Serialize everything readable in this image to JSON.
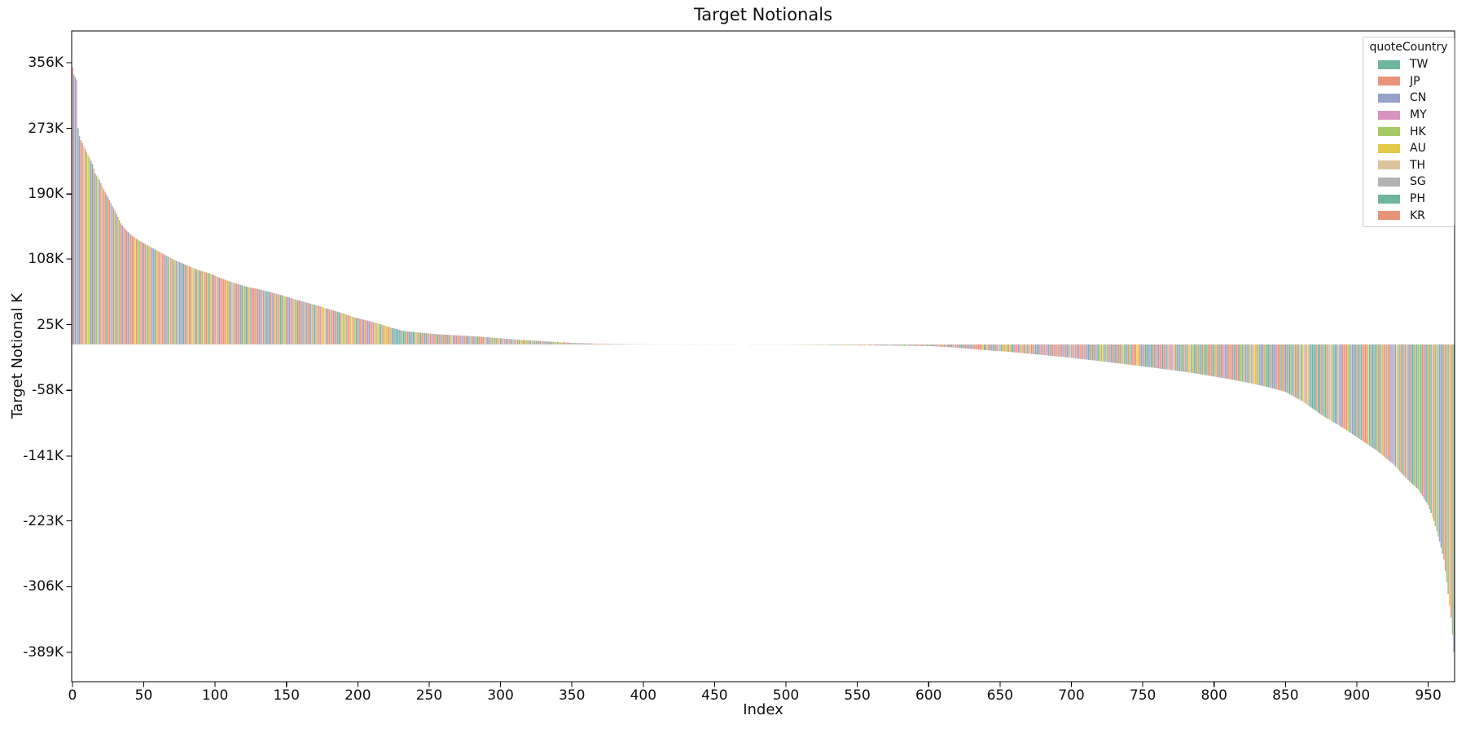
{
  "figure": {
    "background": "#ffffff",
    "axis_color": "#000000",
    "text_color": "#111111"
  },
  "chart_data": {
    "type": "bar",
    "title": "Target Notionals",
    "xlabel": "Index",
    "ylabel": "Target Notional K",
    "legend_title": "quoteCountry",
    "legend_position": "upper right",
    "grid": false,
    "description": "969 bars sorted by value descending from about +350K at index 0 to about -389K at index 968; middle indices (~340-500) are near zero; bar color encodes quoteCountry.",
    "n_bars": 969,
    "xlim": [
      -0.5,
      968.5
    ],
    "ylim_k": [
      -426,
      396
    ],
    "x_ticks": [
      0,
      50,
      100,
      150,
      200,
      250,
      300,
      350,
      400,
      450,
      500,
      550,
      600,
      650,
      700,
      750,
      800,
      850,
      900,
      950
    ],
    "y_ticks": [
      {
        "value": 356,
        "label": "356K"
      },
      {
        "value": 273,
        "label": "273K"
      },
      {
        "value": 190,
        "label": "190K"
      },
      {
        "value": 108,
        "label": "108K"
      },
      {
        "value": 25,
        "label": "25K"
      },
      {
        "value": -58,
        "label": "-58K"
      },
      {
        "value": -141,
        "label": "-141K"
      },
      {
        "value": -223,
        "label": "-223K"
      },
      {
        "value": -306,
        "label": "-306K"
      },
      {
        "value": -389,
        "label": "-389K"
      }
    ],
    "unit": "K",
    "envelope_points_k": [
      [
        0,
        350
      ],
      [
        1,
        341
      ],
      [
        2,
        338
      ],
      [
        3,
        334
      ],
      [
        4,
        273
      ],
      [
        5,
        263
      ],
      [
        6,
        258
      ],
      [
        8,
        251
      ],
      [
        10,
        243
      ],
      [
        12,
        236
      ],
      [
        14,
        228
      ],
      [
        16,
        216
      ],
      [
        19,
        208
      ],
      [
        22,
        196
      ],
      [
        25,
        186
      ],
      [
        28,
        175
      ],
      [
        31,
        165
      ],
      [
        34,
        153
      ],
      [
        38,
        144
      ],
      [
        42,
        137
      ],
      [
        47,
        131
      ],
      [
        52,
        126
      ],
      [
        57,
        121
      ],
      [
        62,
        116
      ],
      [
        70,
        108
      ],
      [
        79,
        101
      ],
      [
        88,
        94
      ],
      [
        96,
        90
      ],
      [
        105,
        83
      ],
      [
        113,
        78
      ],
      [
        122,
        73
      ],
      [
        130,
        70
      ],
      [
        139,
        66
      ],
      [
        147,
        62
      ],
      [
        156,
        57
      ],
      [
        164,
        53
      ],
      [
        172,
        49
      ],
      [
        181,
        44
      ],
      [
        190,
        39
      ],
      [
        198,
        34
      ],
      [
        207,
        30
      ],
      [
        215,
        26
      ],
      [
        224,
        21
      ],
      [
        232,
        17
      ],
      [
        243,
        15
      ],
      [
        255,
        13
      ],
      [
        270,
        11.5
      ],
      [
        284,
        10
      ],
      [
        298,
        8
      ],
      [
        312,
        6
      ],
      [
        326,
        4.5
      ],
      [
        340,
        3
      ],
      [
        355,
        1.7
      ],
      [
        370,
        0.9
      ],
      [
        390,
        0.4
      ],
      [
        420,
        0.1
      ],
      [
        470,
        0.01
      ],
      [
        497,
        -0.2
      ],
      [
        540,
        -0.8
      ],
      [
        570,
        -1.4
      ],
      [
        600,
        -2
      ],
      [
        619,
        -4
      ],
      [
        638,
        -7
      ],
      [
        657,
        -9.5
      ],
      [
        672,
        -12
      ],
      [
        695,
        -16
      ],
      [
        715,
        -20
      ],
      [
        738,
        -25
      ],
      [
        760,
        -30
      ],
      [
        785,
        -36
      ],
      [
        808,
        -43
      ],
      [
        823,
        -48
      ],
      [
        838,
        -54
      ],
      [
        850,
        -60
      ],
      [
        862,
        -72
      ],
      [
        876,
        -90
      ],
      [
        890,
        -105
      ],
      [
        900,
        -117
      ],
      [
        914,
        -134
      ],
      [
        926,
        -152
      ],
      [
        935,
        -170
      ],
      [
        943,
        -183
      ],
      [
        950,
        -203
      ],
      [
        954,
        -223
      ],
      [
        958,
        -249
      ],
      [
        961,
        -272
      ],
      [
        963,
        -300
      ],
      [
        965,
        -330
      ],
      [
        966,
        -345
      ],
      [
        968,
        -389
      ]
    ],
    "countries": [
      {
        "code": "TW",
        "color": "#6fb5a0"
      },
      {
        "code": "JP",
        "color": "#e8947a"
      },
      {
        "code": "CN",
        "color": "#94a3c7"
      },
      {
        "code": "MY",
        "color": "#d995c1"
      },
      {
        "code": "HK",
        "color": "#a4c965"
      },
      {
        "code": "AU",
        "color": "#e3c84a"
      },
      {
        "code": "TH",
        "color": "#dcc49e"
      },
      {
        "code": "SG",
        "color": "#b3b3b3"
      },
      {
        "code": "PH",
        "color": "#6fb5a0"
      },
      {
        "code": "KR",
        "color": "#e8947a"
      }
    ],
    "hue_mix": {
      "TW": 0.07,
      "JP": 0.21,
      "CN": 0.2,
      "MY": 0.035,
      "HK": 0.1,
      "AU": 0.075,
      "TH": 0.065,
      "SG": 0.055,
      "PH": 0.065,
      "KR": 0.125
    },
    "lead_bar_countries": [
      "JP",
      "CN",
      "CN",
      "MY",
      "TW",
      "CN",
      "JP",
      "JP",
      "TH",
      "JP",
      "HK",
      "AU",
      "HK",
      "CN",
      "TW",
      "JP",
      "CN",
      "HK",
      "TH",
      "CN"
    ],
    "tail_bar_countries": [
      "AU",
      "JP",
      "HK",
      "CN"
    ]
  }
}
